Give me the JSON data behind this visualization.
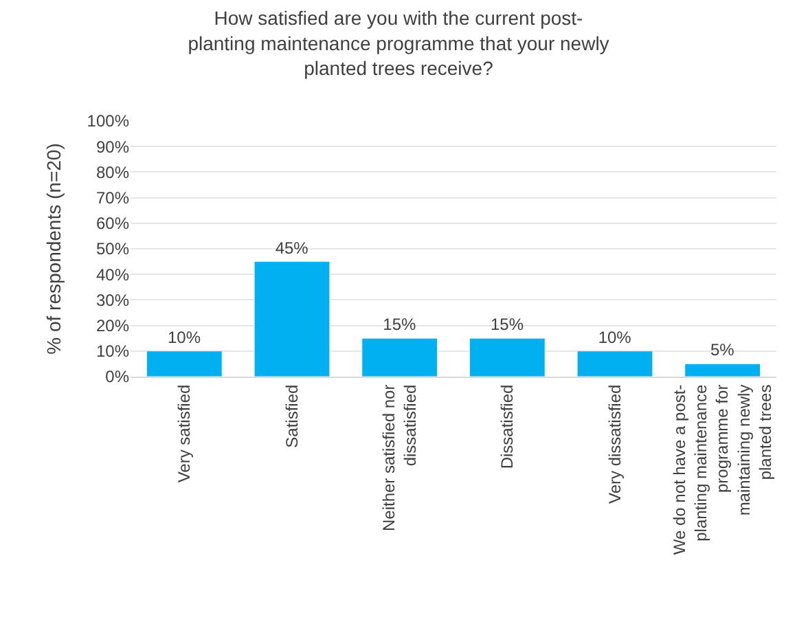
{
  "chart_data": {
    "type": "bar",
    "title": "How satisfied are you with the current post-planting maintenance programme that your newly planted trees receive?",
    "ylabel": "% of respondents (n=20)",
    "categories": [
      "Very satisfied",
      "Satisfied",
      "Neither satisfied nor dissatisfied",
      "Dissatisfied",
      "Very dissatisfied",
      "We do not have a post-planting maintenance programme for maintaining newly planted trees"
    ],
    "values": [
      10,
      45,
      15,
      15,
      10,
      5
    ],
    "value_labels": [
      "10%",
      "45%",
      "15%",
      "15%",
      "10%",
      "5%"
    ],
    "color": "#00b0f0",
    "ylim": [
      0,
      100
    ],
    "yticks": [
      {
        "value": 0,
        "label": "0%"
      },
      {
        "value": 10,
        "label": "10%"
      },
      {
        "value": 20,
        "label": "20%"
      },
      {
        "value": 30,
        "label": "30%"
      },
      {
        "value": 40,
        "label": "40%"
      },
      {
        "value": 50,
        "label": "50%"
      },
      {
        "value": 60,
        "label": "60%"
      },
      {
        "value": 70,
        "label": "70%"
      },
      {
        "value": 80,
        "label": "80%"
      },
      {
        "value": 90,
        "label": "90%"
      },
      {
        "value": 100,
        "label": "100%"
      }
    ],
    "grid": "y",
    "legend": false
  }
}
